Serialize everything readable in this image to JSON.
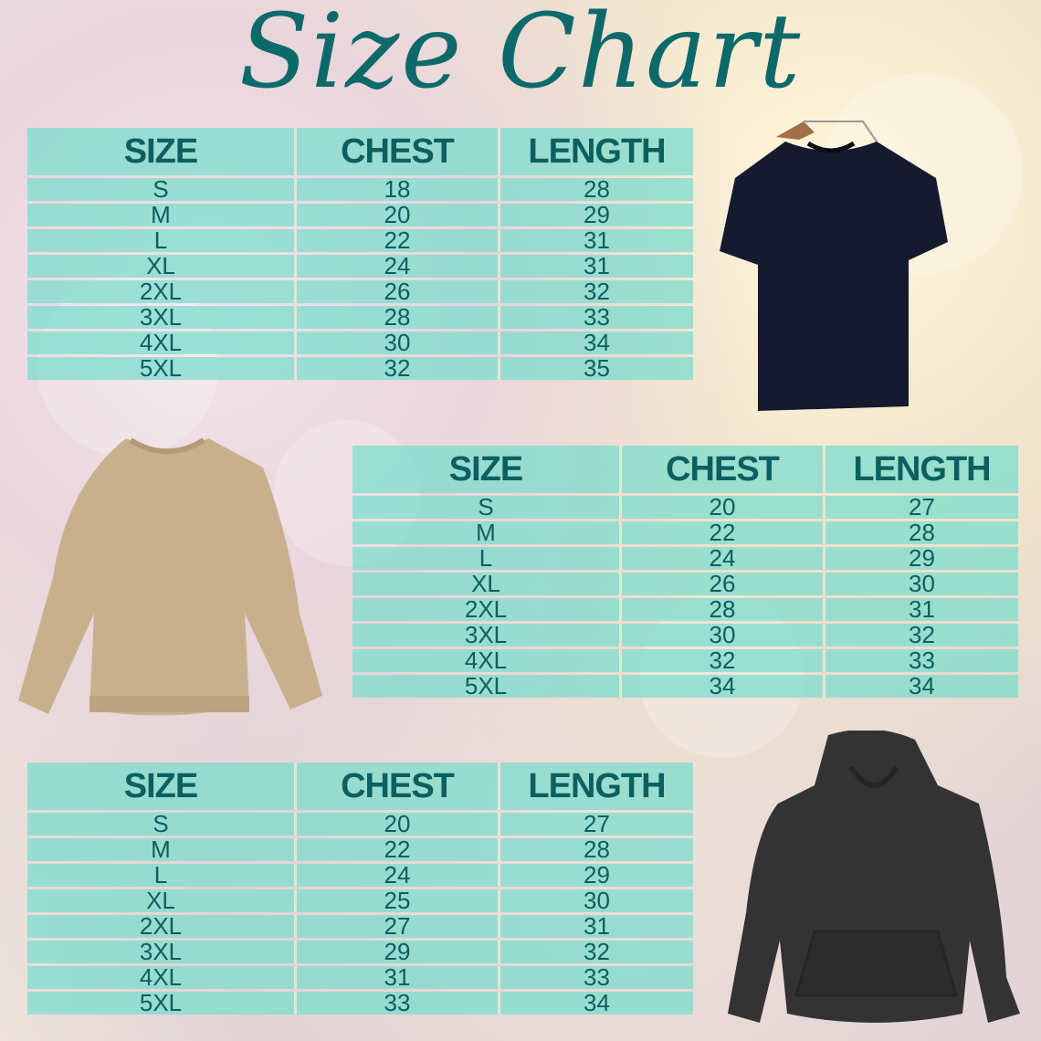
{
  "title": "Size Chart",
  "tables": [
    {
      "garment": "t-shirt",
      "headers": [
        "SIZE",
        "CHEST",
        "LENGTH"
      ],
      "rows": [
        [
          "S",
          "18",
          "28"
        ],
        [
          "M",
          "20",
          "29"
        ],
        [
          "L",
          "22",
          "31"
        ],
        [
          "XL",
          "24",
          "31"
        ],
        [
          "2XL",
          "26",
          "32"
        ],
        [
          "3XL",
          "28",
          "33"
        ],
        [
          "4XL",
          "30",
          "34"
        ],
        [
          "5XL",
          "32",
          "35"
        ]
      ]
    },
    {
      "garment": "sweatshirt",
      "headers": [
        "SIZE",
        "CHEST",
        "LENGTH"
      ],
      "rows": [
        [
          "S",
          "20",
          "27"
        ],
        [
          "M",
          "22",
          "28"
        ],
        [
          "L",
          "24",
          "29"
        ],
        [
          "XL",
          "26",
          "30"
        ],
        [
          "2XL",
          "28",
          "31"
        ],
        [
          "3XL",
          "30",
          "32"
        ],
        [
          "4XL",
          "32",
          "33"
        ],
        [
          "5XL",
          "34",
          "34"
        ]
      ]
    },
    {
      "garment": "hoodie",
      "headers": [
        "SIZE",
        "CHEST",
        "LENGTH"
      ],
      "rows": [
        [
          "S",
          "20",
          "27"
        ],
        [
          "M",
          "22",
          "28"
        ],
        [
          "L",
          "24",
          "29"
        ],
        [
          "XL",
          "25",
          "30"
        ],
        [
          "2XL",
          "27",
          "31"
        ],
        [
          "3XL",
          "29",
          "32"
        ],
        [
          "4XL",
          "31",
          "33"
        ],
        [
          "5XL",
          "33",
          "34"
        ]
      ]
    }
  ],
  "colors": {
    "text": "#0b5f60",
    "cell": "#78dccd",
    "divider": "#fae1d7",
    "tshirt": "#151a2e",
    "sweatshirt": "#c8b08e",
    "hoodie": "#333333"
  }
}
